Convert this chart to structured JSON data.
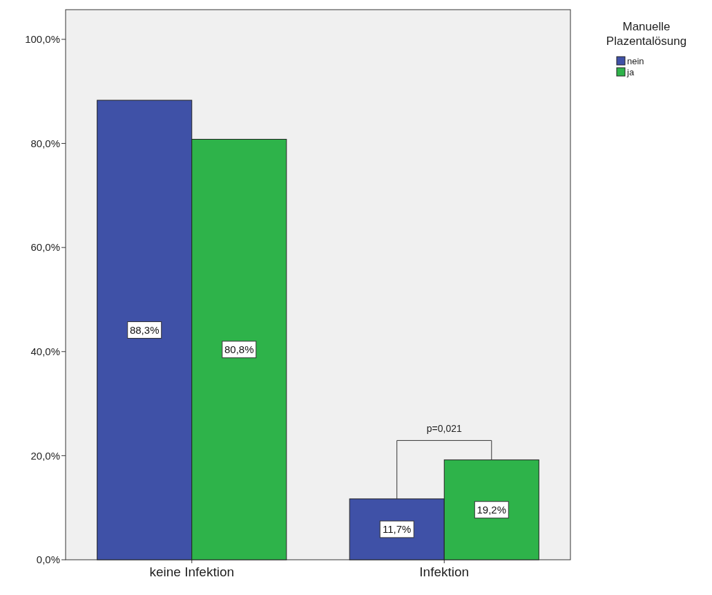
{
  "chart_data": {
    "type": "bar",
    "categories": [
      "keine Infektion",
      "Infektion"
    ],
    "series": [
      {
        "name": "nein",
        "color": "#3f51a7",
        "values": [
          88.3,
          11.7
        ],
        "value_labels": [
          "88,3%",
          "11,7%"
        ]
      },
      {
        "name": "ja",
        "color": "#2eb34a",
        "values": [
          80.8,
          19.2
        ],
        "value_labels": [
          "80,8%",
          "19,2%"
        ]
      }
    ],
    "ylim": [
      0,
      105.7
    ],
    "yticks": [
      {
        "value": 0,
        "label": "0,0%"
      },
      {
        "value": 20,
        "label": "20,0%"
      },
      {
        "value": 40,
        "label": "40,0%"
      },
      {
        "value": 60,
        "label": "60,0%"
      },
      {
        "value": 80,
        "label": "80,0%"
      },
      {
        "value": 100,
        "label": "100,0%"
      }
    ],
    "legend": "right",
    "legend_title": "Manuelle Plazentalösung",
    "grid": false,
    "annotations": [
      "p=0,021"
    ]
  }
}
